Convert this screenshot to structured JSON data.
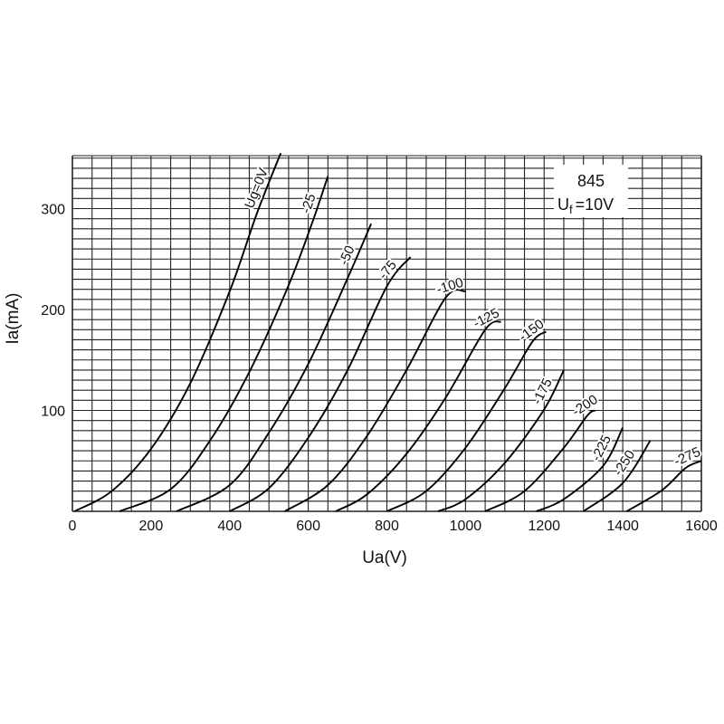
{
  "chart_data": {
    "type": "line",
    "title": "",
    "xlabel": "Ua(V)",
    "ylabel": "Ia(mA)",
    "xlim": [
      0,
      1600
    ],
    "ylim": [
      0,
      350
    ],
    "grid": true,
    "x_ticks": [
      0,
      200,
      400,
      600,
      800,
      1000,
      1200,
      1400,
      1600
    ],
    "y_ticks": [
      100,
      200,
      300
    ],
    "legend": "none",
    "info": {
      "tube": "845",
      "filament_main": "U",
      "filament_sub": "f",
      "filament_value": "=10V"
    },
    "series": [
      {
        "name": "Ug=0V",
        "x": [
          5,
          100,
          200,
          300,
          400,
          470,
          530
        ],
        "y": [
          0,
          20,
          62,
          127,
          218,
          296,
          355
        ]
      },
      {
        "name": "-25",
        "x": [
          120,
          250,
          350,
          450,
          550,
          610,
          650
        ],
        "y": [
          0,
          22,
          70,
          138,
          224,
          286,
          332
        ]
      },
      {
        "name": "-50",
        "x": [
          265,
          400,
          500,
          600,
          700,
          760
        ],
        "y": [
          0,
          26,
          78,
          146,
          231,
          285
        ]
      },
      {
        "name": "-75",
        "x": [
          400,
          500,
          600,
          700,
          800,
          860
        ],
        "y": [
          0,
          23,
          73,
          140,
          223,
          252
        ]
      },
      {
        "name": "-100",
        "x": [
          540,
          650,
          750,
          850,
          950,
          1000
        ],
        "y": [
          0,
          26,
          75,
          140,
          212,
          218
        ]
      },
      {
        "name": "-125",
        "x": [
          670,
          750,
          850,
          950,
          1050,
          1090
        ],
        "y": [
          0,
          17,
          57,
          113,
          180,
          188
        ]
      },
      {
        "name": "-150",
        "x": [
          800,
          900,
          1000,
          1100,
          1170,
          1205
        ],
        "y": [
          0,
          20,
          63,
          122,
          168,
          178
        ]
      },
      {
        "name": "-175",
        "x": [
          930,
          1000,
          1100,
          1200,
          1250
        ],
        "y": [
          0,
          12,
          48,
          101,
          140
        ]
      },
      {
        "name": "-200",
        "x": [
          1050,
          1150,
          1250,
          1310,
          1330
        ],
        "y": [
          0,
          20,
          63,
          95,
          100
        ]
      },
      {
        "name": "-225",
        "x": [
          1180,
          1250,
          1350,
          1400
        ],
        "y": [
          0,
          12,
          45,
          83
        ]
      },
      {
        "name": "-250",
        "x": [
          1300,
          1400,
          1470
        ],
        "y": [
          0,
          28,
          70
        ]
      },
      {
        "name": "-275",
        "x": [
          1410,
          1500,
          1560,
          1600
        ],
        "y": [
          0,
          21,
          43,
          50
        ]
      }
    ]
  }
}
